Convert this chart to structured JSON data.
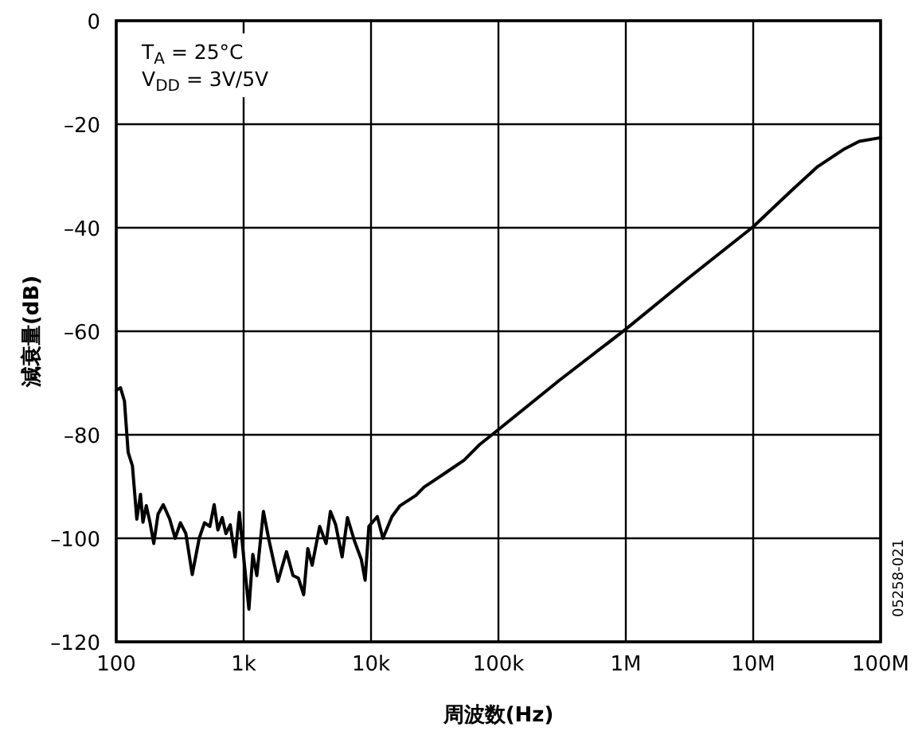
{
  "chart_data": {
    "type": "line",
    "xlabel": "周波数(Hz)",
    "ylabel": "減衰量(dB)",
    "log": "x",
    "grid": true,
    "marker": "none",
    "line_style": "solid",
    "xlim": [
      100,
      100000000
    ],
    "xticks": [
      {
        "value": 100,
        "label": "100"
      },
      {
        "value": 1000,
        "label": "1k"
      },
      {
        "value": 10000,
        "label": "10k"
      },
      {
        "value": 100000,
        "label": "100k"
      },
      {
        "value": 1000000,
        "label": "1M"
      },
      {
        "value": 10000000,
        "label": "10M"
      },
      {
        "value": 100000000,
        "label": "100M"
      }
    ],
    "ylim": [
      -120,
      0
    ],
    "yticks": [
      {
        "value": -120,
        "label": "–120"
      },
      {
        "value": -100,
        "label": "–100"
      },
      {
        "value": -80,
        "label": "–80"
      },
      {
        "value": -60,
        "label": "–60"
      },
      {
        "value": -40,
        "label": "–40"
      },
      {
        "value": -20,
        "label": "–20"
      },
      0
    ],
    "annotations": [
      "T$_{A}$ = 25°C",
      "V$_{DD}$ = 3V/5V",
      "05258-021"
    ],
    "series": [
      {
        "color": "#000000",
        "x": [
          100,
          108,
          116,
          124,
          134,
          145,
          155,
          162,
          172,
          184,
          197,
          213,
          234,
          263,
          290,
          319,
          352,
          395,
          448,
          493,
          543,
          587,
          628,
          679,
          726,
          785,
          857,
          925,
          1020,
          1100,
          1180,
          1270,
          1430,
          1570,
          1860,
          2170,
          2440,
          2690,
          2960,
          3190,
          3450,
          3950,
          4440,
          4800,
          5280,
          5930,
          6530,
          7410,
          8390,
          8990,
          9620,
          11200,
          12400,
          14600,
          16900,
          19500,
          22500,
          26100,
          30100,
          40300,
          53800,
          71900,
          100000,
          300000,
          1000000,
          3000000,
          10000000,
          20000000,
          32000000,
          51000000,
          68000000,
          100000000
        ],
        "values": [
          -71.4,
          -70.9,
          -73.5,
          -83.4,
          -86,
          -96.3,
          -91.5,
          -96.9,
          -93.7,
          -96.9,
          -101,
          -95.3,
          -93.5,
          -96.3,
          -100,
          -97,
          -99.1,
          -107,
          -100,
          -97,
          -97.7,
          -93.5,
          -98.4,
          -96,
          -99.1,
          -97.4,
          -103.6,
          -95,
          -105.7,
          -113.7,
          -103.1,
          -107.2,
          -94.8,
          -100,
          -108.3,
          -102.6,
          -107.2,
          -107.7,
          -110.9,
          -102,
          -105.2,
          -97.7,
          -101,
          -94.8,
          -97.4,
          -103.6,
          -96,
          -100.5,
          -104.1,
          -108.1,
          -97.7,
          -95.8,
          -100,
          -95.8,
          -93.7,
          -92.7,
          -91.7,
          -90.1,
          -89.1,
          -87,
          -84.9,
          -81.8,
          -79,
          -69.5,
          -59.6,
          -50,
          -39.8,
          -32.8,
          -28.2,
          -24.9,
          -23.3,
          -22.6
        ]
      }
    ]
  }
}
